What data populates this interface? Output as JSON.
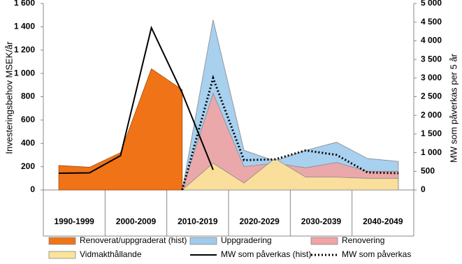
{
  "chart_data": {
    "type": "area-line",
    "y_label": "Investeringsbehov MSEK/år",
    "y2_label": "MW som påverkas per 5 år",
    "categories": [
      "1990-1999",
      null,
      "2000-2009",
      null,
      "2010-2019",
      null,
      "2020-2029",
      null,
      "2030-2039",
      null,
      "2040-2049",
      null
    ],
    "ylim": [
      0,
      1600
    ],
    "yticks": [
      0,
      200,
      400,
      600,
      800,
      {
        "value": 1000,
        "label": "1 000"
      },
      {
        "value": 1200,
        "label": "1 200"
      },
      {
        "value": 1400,
        "label": "1 400"
      },
      {
        "value": 1600,
        "label": "1 600"
      }
    ],
    "y2lim": [
      0,
      5000
    ],
    "y2ticks": [
      0,
      500,
      {
        "value": 1000,
        "label": "1 000"
      },
      {
        "value": 1500,
        "label": "1 500"
      },
      {
        "value": 2000,
        "label": "2 000"
      },
      {
        "value": 2500,
        "label": "2 500"
      },
      {
        "value": 3000,
        "label": "3 000"
      },
      {
        "value": 3500,
        "label": "3 500"
      },
      {
        "value": 4000,
        "label": "4 000"
      },
      {
        "value": 4500,
        "label": "4 500"
      },
      {
        "value": 5000,
        "label": "5 000"
      }
    ],
    "series": [
      {
        "name": "Renoverat/uppgraderat (hist)",
        "style": "area",
        "color": "#f07318",
        "values": [
          210,
          195,
          320,
          1040,
          860,
          null,
          null,
          null,
          null,
          null,
          null,
          null
        ]
      },
      {
        "name": "Uppgradering",
        "style": "area",
        "color": "#9fcbed",
        "values": [
          null,
          null,
          null,
          null,
          0,
          1460,
          340,
          250,
          340,
          410,
          270,
          245
        ]
      },
      {
        "name": "Renovering",
        "style": "area",
        "color": "#f2a3a3",
        "values": [
          null,
          null,
          null,
          null,
          0,
          830,
          200,
          230,
          190,
          235,
          160,
          160
        ]
      },
      {
        "name": "Vidmakthållande",
        "style": "area",
        "color": "#fbe39a",
        "values": [
          null,
          null,
          null,
          null,
          0,
          230,
          60,
          270,
          110,
          110,
          100,
          100
        ]
      },
      {
        "name": "MW som påverkas (hist)",
        "style": "line",
        "axis": "y2",
        "color": "#000000",
        "values": [
          450,
          460,
          920,
          4350,
          2600,
          540,
          null,
          null,
          null,
          null,
          null,
          null
        ]
      },
      {
        "name": "MW som påverkas",
        "style": "dotted",
        "axis": "y2",
        "color": "#000000",
        "values": [
          null,
          null,
          null,
          null,
          0,
          3000,
          800,
          820,
          1060,
          940,
          470,
          450
        ]
      }
    ]
  }
}
